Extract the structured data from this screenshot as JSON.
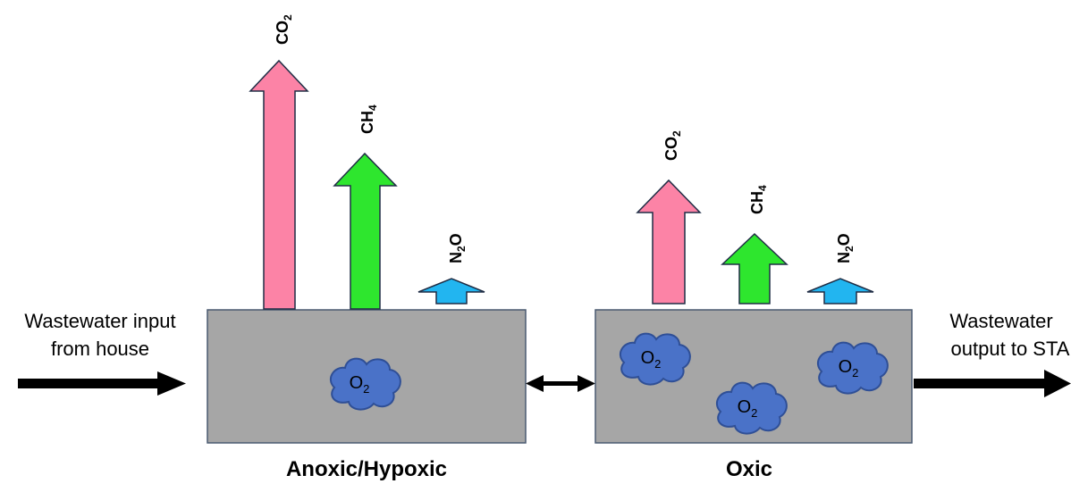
{
  "input_label": {
    "line1": "Wastewater input",
    "line2": "from house"
  },
  "output_label": {
    "line1": "Wastewater",
    "line2": "output to STA"
  },
  "tanks": {
    "anoxic": {
      "label": "Anoxic/Hypoxic",
      "emissions": [
        {
          "gas": "CO",
          "sub": "2",
          "level": "high",
          "color": "#fc83a6"
        },
        {
          "gas": "CH",
          "sub": "4",
          "level": "medium",
          "color": "#2ee62e"
        },
        {
          "gas": "N",
          "sub": "2",
          "suffix": "O",
          "level": "low",
          "color": "#22b5f0"
        }
      ],
      "oxygen_bubbles": [
        {
          "symbol": "O",
          "sub": "2"
        }
      ]
    },
    "oxic": {
      "label": "Oxic",
      "emissions": [
        {
          "gas": "CO",
          "sub": "2",
          "level": "medium",
          "color": "#fc83a6"
        },
        {
          "gas": "CH",
          "sub": "4",
          "level": "low",
          "color": "#2ee62e"
        },
        {
          "gas": "N",
          "sub": "2",
          "suffix": "O",
          "level": "very low",
          "color": "#22b5f0"
        }
      ],
      "oxygen_bubbles": [
        {
          "symbol": "O",
          "sub": "2"
        },
        {
          "symbol": "O",
          "sub": "2"
        },
        {
          "symbol": "O",
          "sub": "2"
        }
      ]
    }
  },
  "colors": {
    "tank_fill": "#a6a6a6",
    "tank_border": "#4a5a70",
    "bubble_fill": "#4a72c8",
    "bubble_border": "#2f4f96",
    "arrow_outline": "#1f2d45",
    "flow_arrow": "#000000"
  }
}
